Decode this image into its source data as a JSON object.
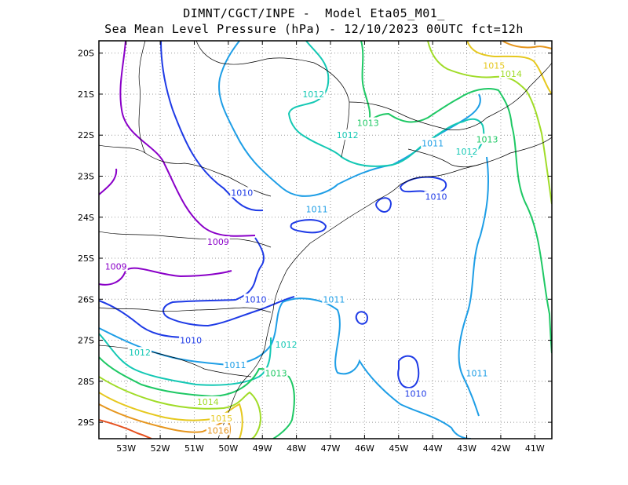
{
  "header": {
    "line1": "DIMNT/CGCT/INPE -  Model Eta05_M01_",
    "line2": "Sea Mean Level Pressure (hPa) - 12/10/2023 00UTC fct=12h"
  },
  "axes": {
    "lon_ticks": [
      "53W",
      "52W",
      "51W",
      "50W",
      "49W",
      "48W",
      "47W",
      "46W",
      "45W",
      "44W",
      "43W",
      "42W",
      "41W"
    ],
    "lat_ticks": [
      "20S",
      "21S",
      "22S",
      "23S",
      "24S",
      "25S",
      "26S",
      "27S",
      "28S",
      "29S"
    ]
  },
  "map": {
    "lon_range": [
      -53.8,
      -40.5
    ],
    "lat_range": [
      -29.4,
      -19.7
    ],
    "grid": "dotted",
    "colors": {
      "1009": "#8a00c8",
      "1010": "#1f3be6",
      "1011": "#1e9ee6",
      "1012": "#14c8b4",
      "1013": "#1ec864",
      "1014": "#a0dc28",
      "1015": "#e6c81e",
      "1016": "#e6961e",
      "1017": "#e6501e",
      "coast": "#000000"
    }
  },
  "contour_labels": [
    {
      "text": "1009",
      "color_key": "1009",
      "lon": -50.3,
      "lat": -24.6
    },
    {
      "text": "1009",
      "color_key": "1009",
      "lon": -53.3,
      "lat": -25.2
    },
    {
      "text": "1010",
      "color_key": "1010",
      "lon": -49.6,
      "lat": -23.4
    },
    {
      "text": "1010",
      "color_key": "1010",
      "lon": -49.2,
      "lat": -26.0
    },
    {
      "text": "1010",
      "color_key": "1010",
      "lon": -51.1,
      "lat": -27.0
    },
    {
      "text": "1010",
      "color_key": "1010",
      "lon": -43.9,
      "lat": -23.5
    },
    {
      "text": "1010",
      "color_key": "1010",
      "lon": -44.5,
      "lat": -28.3
    },
    {
      "text": "1011",
      "color_key": "1011",
      "lon": -47.4,
      "lat": -23.8
    },
    {
      "text": "1011",
      "color_key": "1011",
      "lon": -46.9,
      "lat": -26.0
    },
    {
      "text": "1011",
      "color_key": "1011",
      "lon": -49.8,
      "lat": -27.6
    },
    {
      "text": "1011",
      "color_key": "1011",
      "lon": -44.0,
      "lat": -22.2
    },
    {
      "text": "1011",
      "color_key": "1011",
      "lon": -42.7,
      "lat": -27.8
    },
    {
      "text": "1012",
      "color_key": "1012",
      "lon": -47.5,
      "lat": -21.0
    },
    {
      "text": "1012",
      "color_key": "1012",
      "lon": -46.5,
      "lat": -22.0
    },
    {
      "text": "1012",
      "color_key": "1012",
      "lon": -43.0,
      "lat": -22.4
    },
    {
      "text": "1012",
      "color_key": "1012",
      "lon": -48.3,
      "lat": -27.1
    },
    {
      "text": "1012",
      "color_key": "1012",
      "lon": -52.6,
      "lat": -27.3
    },
    {
      "text": "1013",
      "color_key": "1013",
      "lon": -45.9,
      "lat": -21.7
    },
    {
      "text": "1013",
      "color_key": "1013",
      "lon": -42.4,
      "lat": -22.1
    },
    {
      "text": "1013",
      "color_key": "1013",
      "lon": -48.6,
      "lat": -27.8
    },
    {
      "text": "1014",
      "color_key": "1014",
      "lon": -41.7,
      "lat": -20.5
    },
    {
      "text": "1014",
      "color_key": "1014",
      "lon": -50.6,
      "lat": -28.5
    },
    {
      "text": "1015",
      "color_key": "1015",
      "lon": -42.2,
      "lat": -20.3
    },
    {
      "text": "1015",
      "color_key": "1015",
      "lon": -50.2,
      "lat": -28.9
    },
    {
      "text": "1016",
      "color_key": "1016",
      "lon": -50.3,
      "lat": -29.2
    }
  ]
}
